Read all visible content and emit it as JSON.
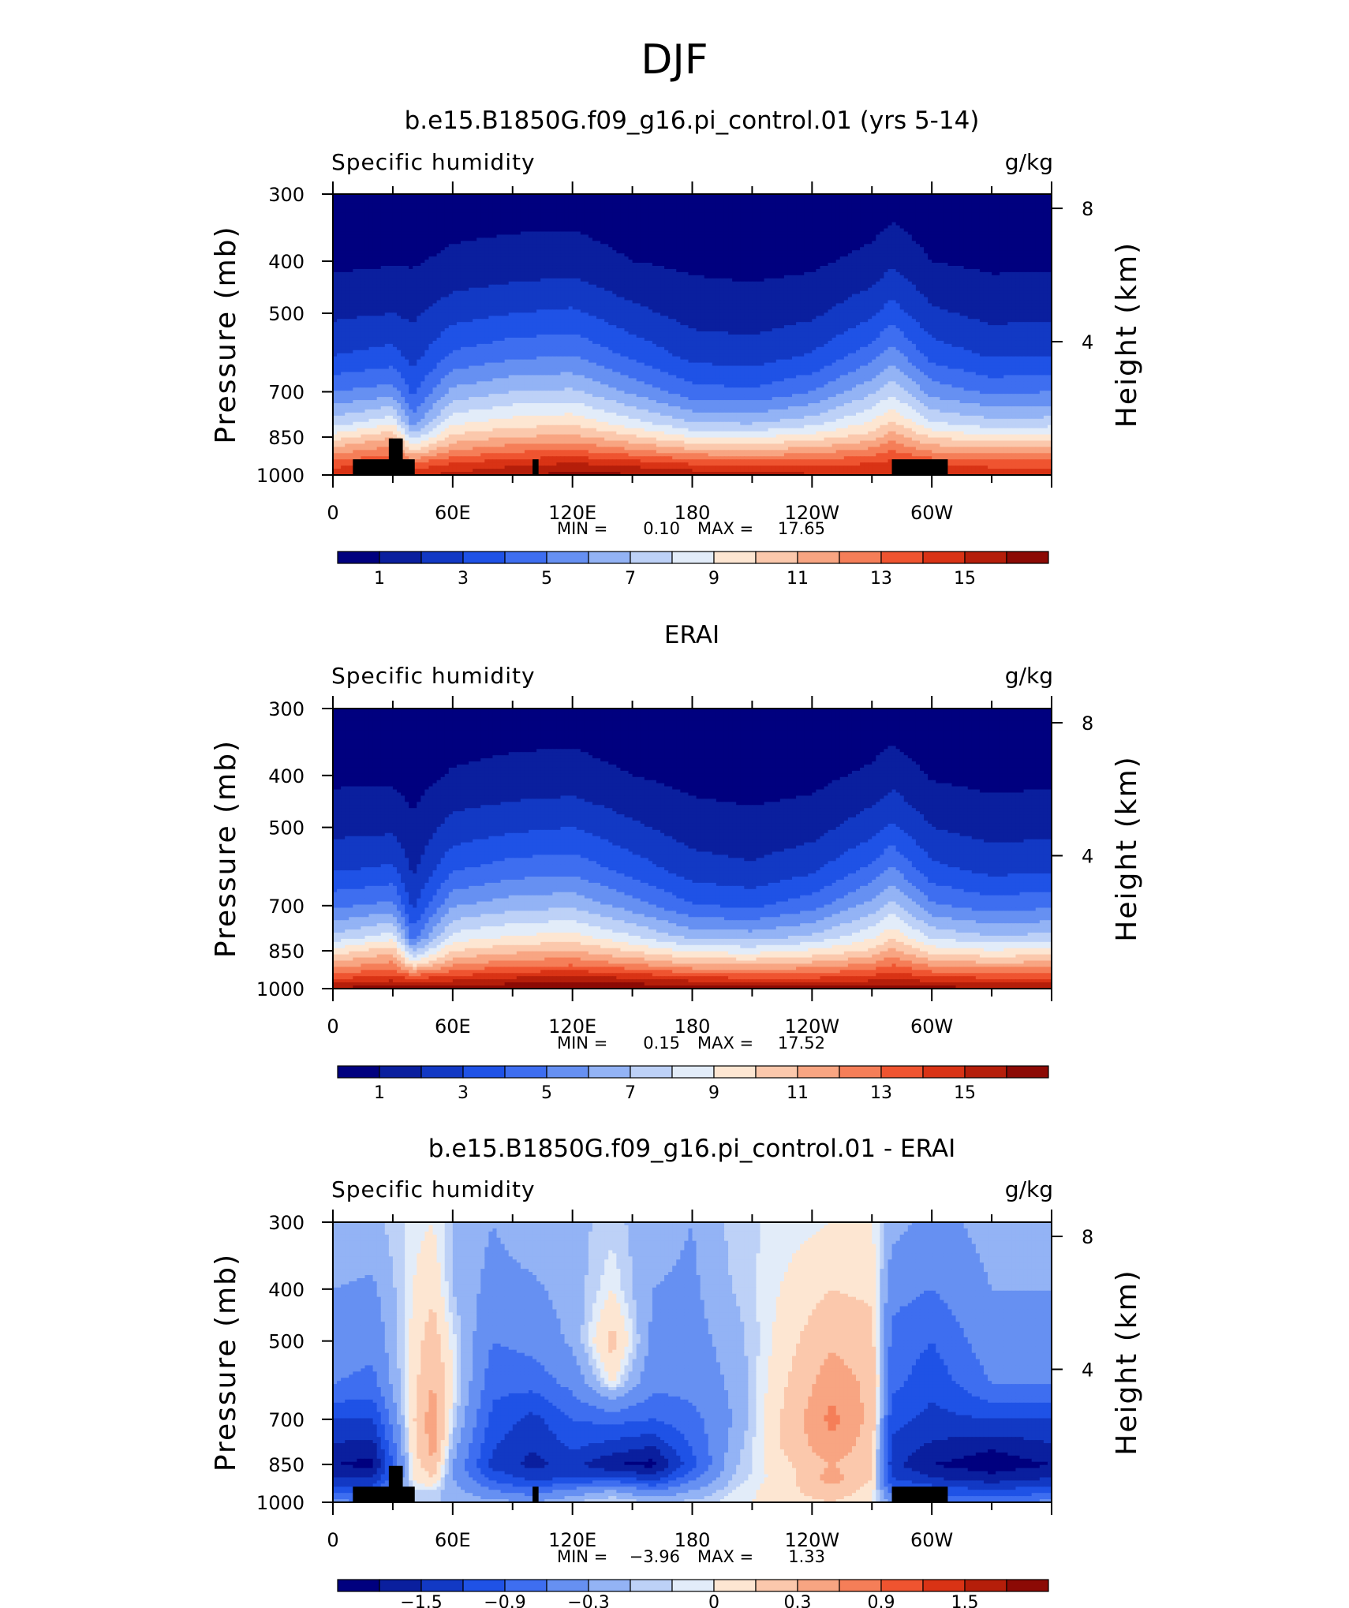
{
  "page_title": "DJF",
  "colormap": {
    "seq": [
      "#00007f",
      "#0a1f9e",
      "#1239c4",
      "#1f52e6",
      "#3e6ef0",
      "#6690f2",
      "#93b3f5",
      "#bdd1f7",
      "#e2ecf9",
      "#fde6d2",
      "#fbc8ac",
      "#f8a582",
      "#f57e58",
      "#ef5430",
      "#d93315",
      "#b51e0a",
      "#8c0a05"
    ],
    "diff": [
      "#00007f",
      "#0a1f9e",
      "#1239c4",
      "#1f52e6",
      "#3e6ef0",
      "#6690f2",
      "#93b3f5",
      "#bdd1f7",
      "#e2ecf9",
      "#fde6d2",
      "#fbc8ac",
      "#f8a582",
      "#f57e58",
      "#ef5430",
      "#d93315",
      "#b51e0a",
      "#8c0a05"
    ]
  },
  "panels": [
    {
      "title": "b.e15.B1850G.f09_g16.pi_control.01 (yrs 5-14)",
      "left_label": "Specific humidity",
      "right_label": "g/kg",
      "ylabel": "Pressure (mb)",
      "ylabel_right": "Height (km)",
      "yticks": [
        "300",
        "400",
        "500",
        "700",
        "850",
        "1000"
      ],
      "yticks_right": [
        "8",
        "4"
      ],
      "xticks": [
        "0",
        "60E",
        "120E",
        "180",
        "120W",
        "60W"
      ],
      "stats": {
        "min_label": "MIN =",
        "min": "0.10",
        "max_label": "MAX =",
        "max": "17.65"
      },
      "colorbar_labels": [
        "1",
        "3",
        "5",
        "7",
        "9",
        "11",
        "13",
        "15"
      ],
      "chart_data": {
        "type": "heatmap",
        "title": "b.e15.B1850G.f09_g16.pi_control.01 (yrs 5-14)",
        "variable": "Specific humidity",
        "units": "g/kg",
        "xlabel": "",
        "ylabel": "Pressure (mb)",
        "ylabel_right": "Height (km)",
        "xlim": [
          0,
          360
        ],
        "ylim": [
          1000,
          300
        ],
        "y_scale": "log",
        "contour_levels": [
          0,
          1,
          2,
          3,
          4,
          5,
          6,
          7,
          8,
          9,
          10,
          11,
          12,
          13,
          14,
          15,
          16,
          100
        ],
        "x": [
          0,
          30,
          40,
          60,
          90,
          120,
          150,
          180,
          210,
          240,
          270,
          280,
          300,
          330,
          360
        ],
        "y": [
          300,
          400,
          500,
          600,
          700,
          800,
          850,
          900,
          950,
          1000
        ],
        "values": [
          [
            0.2,
            0.2,
            0.3,
            0.5,
            0.5,
            0.5,
            0.3,
            0.2,
            0.2,
            0.2,
            0.3,
            0.5,
            0.2,
            0.2,
            0.2
          ],
          [
            0.8,
            0.9,
            0.9,
            1.2,
            1.4,
            1.5,
            1.0,
            0.8,
            0.7,
            0.8,
            1.3,
            1.8,
            1.0,
            0.8,
            0.8
          ],
          [
            1.8,
            2.0,
            1.8,
            2.6,
            3.0,
            3.2,
            2.3,
            1.6,
            1.5,
            1.8,
            2.8,
            3.5,
            2.2,
            1.7,
            1.8
          ],
          [
            3.0,
            3.4,
            2.6,
            4.2,
            4.8,
            5.0,
            3.8,
            2.7,
            2.5,
            3.1,
            4.6,
            5.6,
            3.6,
            2.9,
            3.0
          ],
          [
            5.0,
            5.5,
            3.8,
            6.3,
            7.0,
            7.2,
            5.8,
            4.4,
            4.2,
            5.0,
            6.8,
            7.8,
            5.6,
            4.8,
            5.0
          ],
          [
            7.5,
            8.8,
            5.5,
            8.8,
            9.5,
            9.8,
            8.4,
            7.0,
            6.9,
            7.6,
            9.2,
            10.2,
            8.1,
            7.4,
            7.5
          ],
          [
            9.5,
            11.0,
            7.5,
            10.3,
            11.0,
            11.3,
            10.2,
            9.0,
            8.9,
            9.5,
            10.5,
            11.6,
            9.9,
            9.3,
            9.5
          ],
          [
            11.5,
            12.5,
            10.0,
            12.0,
            12.8,
            13.0,
            12.2,
            11.2,
            11.0,
            11.5,
            12.3,
            13.0,
            11.8,
            11.4,
            11.5
          ],
          [
            13.5,
            14.0,
            13.0,
            14.0,
            14.6,
            15.0,
            14.5,
            13.8,
            13.4,
            13.5,
            14.0,
            14.3,
            13.8,
            13.5,
            13.5
          ],
          [
            14.8,
            15.3,
            15.0,
            15.3,
            16.0,
            16.3,
            16.2,
            15.8,
            15.4,
            15.2,
            15.1,
            15.1,
            15.0,
            14.9,
            14.8
          ]
        ]
      }
    },
    {
      "title": "ERAI",
      "left_label": "Specific humidity",
      "right_label": "g/kg",
      "ylabel": "Pressure (mb)",
      "ylabel_right": "Height (km)",
      "yticks": [
        "300",
        "400",
        "500",
        "700",
        "850",
        "1000"
      ],
      "yticks_right": [
        "8",
        "4"
      ],
      "xticks": [
        "0",
        "60E",
        "120E",
        "180",
        "120W",
        "60W"
      ],
      "stats": {
        "min_label": "MIN =",
        "min": "0.15",
        "max_label": "MAX =",
        "max": "17.52"
      },
      "colorbar_labels": [
        "1",
        "3",
        "5",
        "7",
        "9",
        "11",
        "13",
        "15"
      ],
      "chart_data": {
        "type": "heatmap",
        "title": "ERAI",
        "variable": "Specific humidity",
        "units": "g/kg",
        "xlabel": "",
        "ylabel": "Pressure (mb)",
        "ylabel_right": "Height (km)",
        "xlim": [
          0,
          360
        ],
        "ylim": [
          1000,
          300
        ],
        "y_scale": "log",
        "contour_levels": [
          0,
          1,
          2,
          3,
          4,
          5,
          6,
          7,
          8,
          9,
          10,
          11,
          12,
          13,
          14,
          15,
          16,
          100
        ],
        "x": [
          0,
          30,
          40,
          60,
          90,
          120,
          150,
          180,
          210,
          240,
          270,
          280,
          300,
          330,
          360
        ],
        "y": [
          300,
          400,
          500,
          600,
          700,
          800,
          850,
          900,
          950,
          1000
        ],
        "values": [
          [
            0.2,
            0.2,
            0.2,
            0.4,
            0.5,
            0.5,
            0.3,
            0.2,
            0.2,
            0.2,
            0.3,
            0.4,
            0.2,
            0.2,
            0.2
          ],
          [
            0.8,
            0.8,
            0.6,
            1.1,
            1.3,
            1.4,
            1.0,
            0.7,
            0.6,
            0.7,
            1.2,
            1.6,
            0.9,
            0.7,
            0.8
          ],
          [
            1.7,
            1.8,
            1.2,
            2.4,
            2.8,
            3.0,
            2.2,
            1.5,
            1.3,
            1.6,
            2.6,
            3.2,
            2.0,
            1.6,
            1.7
          ],
          [
            2.9,
            3.2,
            1.8,
            3.9,
            4.5,
            4.7,
            3.6,
            2.5,
            2.2,
            2.8,
            4.3,
            5.2,
            3.3,
            2.7,
            2.9
          ],
          [
            4.8,
            5.3,
            2.8,
            5.9,
            6.6,
            6.8,
            5.5,
            4.1,
            3.8,
            4.6,
            6.4,
            7.4,
            5.2,
            4.5,
            4.8
          ],
          [
            7.3,
            8.5,
            4.5,
            8.4,
            9.1,
            9.4,
            8.1,
            6.7,
            6.5,
            7.2,
            8.8,
            9.8,
            7.8,
            7.1,
            7.3
          ],
          [
            9.4,
            10.7,
            6.8,
            10.0,
            10.7,
            11.0,
            9.9,
            8.8,
            8.6,
            9.2,
            10.2,
            11.3,
            9.6,
            9.1,
            9.4
          ],
          [
            11.4,
            12.3,
            9.5,
            11.8,
            12.6,
            12.8,
            12.0,
            11.0,
            10.8,
            11.3,
            12.1,
            12.9,
            11.6,
            11.2,
            11.4
          ],
          [
            13.6,
            14.2,
            13.5,
            14.2,
            14.8,
            15.1,
            14.7,
            14.0,
            13.6,
            13.7,
            14.3,
            14.8,
            14.0,
            13.7,
            13.6
          ],
          [
            16.2,
            16.6,
            16.4,
            16.6,
            16.9,
            17.1,
            17.0,
            16.8,
            16.5,
            16.4,
            16.4,
            16.7,
            16.4,
            16.2,
            16.2
          ]
        ]
      }
    },
    {
      "title": "b.e15.B1850G.f09_g16.pi_control.01 - ERAI",
      "left_label": "Specific humidity",
      "right_label": "g/kg",
      "ylabel": "Pressure (mb)",
      "ylabel_right": "Height (km)",
      "yticks": [
        "300",
        "400",
        "500",
        "700",
        "850",
        "1000"
      ],
      "yticks_right": [
        "8",
        "4"
      ],
      "xticks": [
        "0",
        "60E",
        "120E",
        "180",
        "120W",
        "60W"
      ],
      "stats": {
        "min_label": "MIN =",
        "min": "−3.96",
        "max_label": "MAX =",
        "max": "1.33"
      },
      "colorbar_labels": [
        "−1.5",
        "−0.9",
        "−0.3",
        "0",
        "0.3",
        "0.9",
        "1.5"
      ],
      "chart_data": {
        "type": "heatmap",
        "title": "b.e15.B1850G.f09_g16.pi_control.01 - ERAI",
        "variable": "Specific humidity",
        "units": "g/kg",
        "xlabel": "",
        "ylabel": "Pressure (mb)",
        "ylabel_right": "Height (km)",
        "xlim": [
          0,
          360
        ],
        "ylim": [
          1000,
          300
        ],
        "y_scale": "log",
        "contour_levels": [
          -100,
          -1.8,
          -1.5,
          -1.2,
          -0.9,
          -0.6,
          -0.3,
          -0.1,
          0,
          0.1,
          0.3,
          0.6,
          0.9,
          1.2,
          1.5,
          1.8,
          2.1,
          100
        ],
        "x": [
          0,
          20,
          40,
          50,
          60,
          80,
          100,
          120,
          140,
          160,
          180,
          200,
          230,
          250,
          270,
          280,
          300,
          330,
          360
        ],
        "y": [
          300,
          400,
          500,
          600,
          700,
          800,
          850,
          900,
          950,
          1000
        ],
        "values": [
          [
            -0.1,
            -0.15,
            0.05,
            0.1,
            -0.1,
            -0.3,
            -0.15,
            -0.15,
            -0.05,
            -0.2,
            -0.3,
            -0.05,
            0.05,
            0.1,
            0.1,
            -0.2,
            -0.4,
            -0.2,
            -0.1
          ],
          [
            -0.3,
            -0.35,
            0.1,
            0.25,
            -0.1,
            -0.4,
            -0.35,
            -0.2,
            0.1,
            -0.3,
            -0.35,
            -0.1,
            0.15,
            0.3,
            0.25,
            -0.5,
            -0.6,
            -0.3,
            -0.3
          ],
          [
            -0.4,
            -0.5,
            0.15,
            0.45,
            0.05,
            -0.6,
            -0.5,
            -0.25,
            0.4,
            -0.35,
            -0.4,
            -0.2,
            0.25,
            0.55,
            0.4,
            -0.7,
            -0.9,
            -0.4,
            -0.4
          ],
          [
            -0.6,
            -0.7,
            0.2,
            0.6,
            0.1,
            -0.8,
            -0.8,
            -0.5,
            0.1,
            -0.5,
            -0.5,
            -0.25,
            0.35,
            0.8,
            0.5,
            -0.8,
            -1.1,
            -0.6,
            -0.6
          ],
          [
            -1.2,
            -1.2,
            0.25,
            0.8,
            0.0,
            -1.0,
            -1.3,
            -0.9,
            -0.8,
            -0.9,
            -0.7,
            -0.3,
            0.45,
            1.0,
            0.5,
            -1.1,
            -1.3,
            -1.2,
            -1.2
          ],
          [
            -1.6,
            -1.7,
            0.2,
            0.7,
            -0.2,
            -1.2,
            -1.5,
            -1.2,
            -1.4,
            -1.6,
            -0.9,
            -0.2,
            0.4,
            0.8,
            0.4,
            -1.3,
            -1.6,
            -1.8,
            -1.6
          ],
          [
            -1.8,
            -1.9,
            0.15,
            0.5,
            -0.3,
            -1.3,
            -1.6,
            -1.4,
            -1.8,
            -1.9,
            -1.0,
            -0.15,
            0.3,
            0.6,
            0.35,
            -1.4,
            -1.8,
            -2.0,
            -1.8
          ],
          [
            -1.5,
            -1.5,
            0.1,
            0.3,
            -0.3,
            -1.0,
            -1.3,
            -1.2,
            -1.1,
            -1.4,
            -0.7,
            -0.1,
            0.25,
            0.75,
            0.3,
            -1.2,
            -1.5,
            -1.7,
            -1.5
          ],
          [
            -1.0,
            -1.0,
            0.0,
            0.0,
            -0.2,
            -0.6,
            -0.8,
            -0.5,
            -0.3,
            -0.6,
            -0.3,
            0.0,
            0.25,
            0.5,
            0.2,
            -0.8,
            -1.0,
            -1.2,
            -1.0
          ],
          [
            -0.5,
            -0.6,
            0.0,
            -0.1,
            -0.1,
            -0.2,
            -0.3,
            -0.1,
            0.05,
            -0.1,
            -0.05,
            0.05,
            0.2,
            0.3,
            0.1,
            -0.4,
            -0.6,
            -0.7,
            -0.5
          ]
        ]
      }
    }
  ]
}
